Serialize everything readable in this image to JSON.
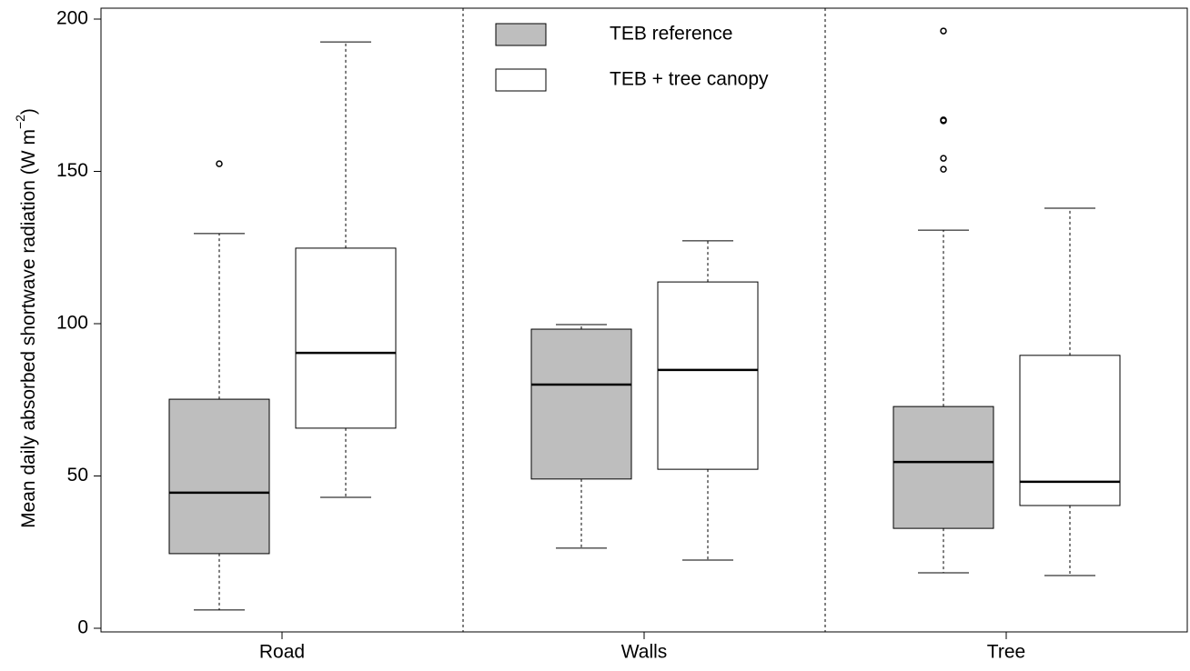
{
  "chart_data": {
    "type": "box",
    "y_label": [
      "Mean daily absorbed shortwave radiation (W m",
      "−2",
      ")"
    ],
    "categories": [
      "Road",
      "Walls",
      "Tree"
    ],
    "series": [
      {
        "name": "TEB reference",
        "color": "#bebebe",
        "values": [
          {
            "min": 6,
            "q1": 24.5,
            "median": 44.5,
            "q3": 75.2,
            "max": 129.6,
            "outliers": [
              152.5
            ]
          },
          {
            "min": 26.3,
            "q1": 49,
            "median": 80,
            "q3": 98.2,
            "max": 99.7,
            "outliers": []
          },
          {
            "min": 18.2,
            "q1": 32.8,
            "median": 54.6,
            "q3": 72.8,
            "max": 130.7,
            "outliers": [
              196.1,
              166.6,
              166.9,
              154.3,
              150.7
            ]
          }
        ]
      },
      {
        "name": "TEB + tree canopy",
        "color": "#ffffff",
        "values": [
          {
            "min": 43,
            "q1": 65.7,
            "median": 90.4,
            "q3": 124.8,
            "max": 192.5,
            "outliers": []
          },
          {
            "min": 22.4,
            "q1": 52.2,
            "median": 84.8,
            "q3": 113.7,
            "max": 127.2,
            "outliers": []
          },
          {
            "min": 17.3,
            "q1": 40.3,
            "median": 48.1,
            "q3": 89.6,
            "max": 137.9,
            "outliers": []
          }
        ]
      }
    ],
    "ylim": [
      0,
      200
    ],
    "yticks": [
      0,
      50,
      100,
      150,
      200
    ]
  }
}
